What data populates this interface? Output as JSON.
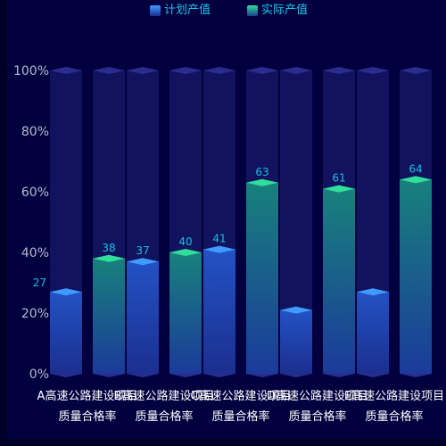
{
  "legend": {
    "plan_label": "计划产值",
    "actual_label": "实际产值"
  },
  "colors": {
    "plan": "#3f9bff",
    "plan_dark": "#1b2f8f",
    "actual": "#2fdf9a",
    "actual_dark": "#183f8a",
    "background_bar": "#141664",
    "background_bar_top": "#2a2d8f",
    "label": "#15bfe4",
    "axis_text": "#b8bbcc",
    "category_text": "#ffffff"
  },
  "chart_data": {
    "type": "bar",
    "categories": [
      {
        "line1": "A高速公路建设项目",
        "line2": "质量合格率"
      },
      {
        "line1": "B高速公路建设项目",
        "line2": "质量合格率"
      },
      {
        "line1": "C高速公路建设项目",
        "line2": "质量合格率"
      },
      {
        "line1": "D高速公路建设项目",
        "line2": "质量合格率"
      },
      {
        "line1": "E高速公路建设项目",
        "line2": "质量合格率"
      }
    ],
    "ylim": [
      0,
      100
    ],
    "yticks": [
      "0%",
      "20%",
      "40%",
      "60%",
      "80%",
      "100%"
    ],
    "series": [
      {
        "name": "计划产值",
        "key": "plan",
        "values": [
          27,
          37,
          41,
          21,
          27
        ]
      },
      {
        "name": "实际产值",
        "key": "actual",
        "values": [
          38,
          40,
          63,
          61,
          64
        ]
      }
    ]
  }
}
